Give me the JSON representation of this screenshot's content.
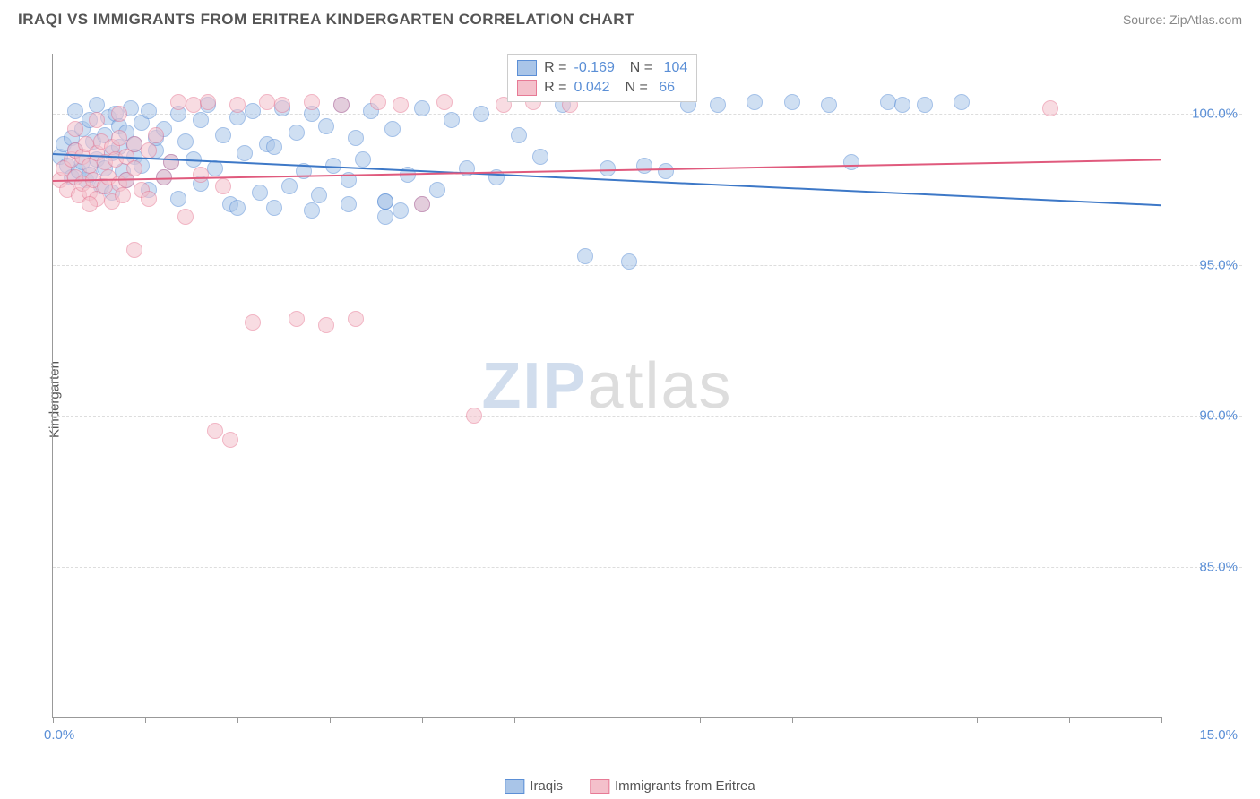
{
  "title": "IRAQI VS IMMIGRANTS FROM ERITREA KINDERGARTEN CORRELATION CHART",
  "source": "Source: ZipAtlas.com",
  "watermark": {
    "zip": "ZIP",
    "atlas": "atlas"
  },
  "chart": {
    "type": "scatter",
    "y_axis_title": "Kindergarten",
    "xlim": [
      0,
      15
    ],
    "ylim": [
      80,
      102
    ],
    "x_label_min": "0.0%",
    "x_label_max": "15.0%",
    "y_ticks": [
      {
        "v": 85,
        "label": "85.0%"
      },
      {
        "v": 90,
        "label": "90.0%"
      },
      {
        "v": 95,
        "label": "95.0%"
      },
      {
        "v": 100,
        "label": "100.0%"
      }
    ],
    "x_tick_positions": [
      0,
      1.25,
      2.5,
      3.75,
      5,
      6.25,
      7.5,
      8.75,
      10,
      11.25,
      12.5,
      13.75,
      15
    ],
    "grid_color": "#dddddd",
    "axis_color": "#999999",
    "background_color": "#ffffff",
    "marker_radius": 9,
    "marker_opacity": 0.55,
    "series": [
      {
        "name": "Iraqis",
        "color_fill": "#a9c5e8",
        "color_stroke": "#5b8fd6",
        "R": "-0.169",
        "N": "104",
        "trend": {
          "x1": 0,
          "y1": 98.7,
          "x2": 15,
          "y2": 97.0,
          "color": "#3d78c7",
          "width": 2
        },
        "points": [
          [
            0.1,
            98.6
          ],
          [
            0.15,
            99.0
          ],
          [
            0.2,
            98.3
          ],
          [
            0.25,
            99.2
          ],
          [
            0.25,
            97.9
          ],
          [
            0.3,
            98.8
          ],
          [
            0.3,
            100.1
          ],
          [
            0.35,
            98.1
          ],
          [
            0.4,
            99.5
          ],
          [
            0.4,
            98.4
          ],
          [
            0.45,
            97.8
          ],
          [
            0.5,
            99.8
          ],
          [
            0.5,
            98.0
          ],
          [
            0.55,
            99.1
          ],
          [
            0.6,
            98.5
          ],
          [
            0.6,
            100.3
          ],
          [
            0.65,
            97.6
          ],
          [
            0.7,
            99.3
          ],
          [
            0.7,
            98.2
          ],
          [
            0.75,
            99.9
          ],
          [
            0.8,
            98.7
          ],
          [
            0.8,
            97.4
          ],
          [
            0.85,
            100.0
          ],
          [
            0.9,
            98.9
          ],
          [
            0.9,
            99.6
          ],
          [
            0.95,
            98.1
          ],
          [
            1.0,
            99.4
          ],
          [
            1.0,
            97.8
          ],
          [
            1.05,
            100.2
          ],
          [
            1.1,
            98.6
          ],
          [
            1.1,
            99.0
          ],
          [
            1.2,
            98.3
          ],
          [
            1.2,
            99.7
          ],
          [
            1.3,
            97.5
          ],
          [
            1.3,
            100.1
          ],
          [
            1.4,
            98.8
          ],
          [
            1.4,
            99.2
          ],
          [
            1.5,
            97.9
          ],
          [
            1.5,
            99.5
          ],
          [
            1.6,
            98.4
          ],
          [
            1.7,
            100.0
          ],
          [
            1.7,
            97.2
          ],
          [
            1.8,
            99.1
          ],
          [
            1.9,
            98.5
          ],
          [
            2.0,
            99.8
          ],
          [
            2.0,
            97.7
          ],
          [
            2.1,
            100.3
          ],
          [
            2.2,
            98.2
          ],
          [
            2.3,
            99.3
          ],
          [
            2.4,
            97.0
          ],
          [
            2.5,
            99.9
          ],
          [
            2.6,
            98.7
          ],
          [
            2.7,
            100.1
          ],
          [
            2.8,
            97.4
          ],
          [
            2.9,
            99.0
          ],
          [
            3.0,
            98.9
          ],
          [
            3.1,
            100.2
          ],
          [
            3.2,
            97.6
          ],
          [
            3.3,
            99.4
          ],
          [
            3.4,
            98.1
          ],
          [
            3.5,
            100.0
          ],
          [
            3.6,
            97.3
          ],
          [
            3.7,
            99.6
          ],
          [
            3.8,
            98.3
          ],
          [
            3.9,
            100.3
          ],
          [
            4.0,
            97.8
          ],
          [
            4.1,
            99.2
          ],
          [
            4.2,
            98.5
          ],
          [
            4.3,
            100.1
          ],
          [
            4.5,
            97.1
          ],
          [
            4.6,
            99.5
          ],
          [
            4.8,
            98.0
          ],
          [
            5.0,
            100.2
          ],
          [
            5.2,
            97.5
          ],
          [
            5.4,
            99.8
          ],
          [
            5.6,
            98.2
          ],
          [
            5.8,
            100.0
          ],
          [
            6.0,
            97.9
          ],
          [
            6.3,
            99.3
          ],
          [
            6.6,
            98.6
          ],
          [
            6.9,
            100.3
          ],
          [
            7.2,
            95.3
          ],
          [
            7.5,
            98.2
          ],
          [
            7.8,
            95.1
          ],
          [
            8.0,
            98.3
          ],
          [
            8.3,
            98.1
          ],
          [
            8.6,
            100.3
          ],
          [
            9.0,
            100.3
          ],
          [
            9.5,
            100.4
          ],
          [
            10.0,
            100.4
          ],
          [
            10.5,
            100.3
          ],
          [
            10.8,
            98.4
          ],
          [
            11.3,
            100.4
          ],
          [
            11.8,
            100.3
          ],
          [
            12.3,
            100.4
          ],
          [
            2.5,
            96.9
          ],
          [
            3.0,
            96.9
          ],
          [
            3.5,
            96.8
          ],
          [
            4.0,
            97.0
          ],
          [
            4.5,
            97.1
          ],
          [
            4.5,
            96.6
          ],
          [
            4.7,
            96.8
          ],
          [
            5.0,
            97.0
          ],
          [
            11.5,
            100.3
          ]
        ]
      },
      {
        "name": "Immigrants from Eritrea",
        "color_fill": "#f4c0cb",
        "color_stroke": "#e77a95",
        "R": "0.042",
        "N": "66",
        "trend": {
          "x1": 0,
          "y1": 97.8,
          "x2": 15,
          "y2": 98.5,
          "color": "#e05a7d",
          "width": 2
        },
        "points": [
          [
            0.1,
            97.8
          ],
          [
            0.15,
            98.2
          ],
          [
            0.2,
            97.5
          ],
          [
            0.25,
            98.5
          ],
          [
            0.3,
            97.9
          ],
          [
            0.3,
            98.8
          ],
          [
            0.35,
            97.3
          ],
          [
            0.4,
            98.6
          ],
          [
            0.4,
            97.7
          ],
          [
            0.45,
            99.0
          ],
          [
            0.5,
            97.4
          ],
          [
            0.5,
            98.3
          ],
          [
            0.55,
            97.8
          ],
          [
            0.6,
            98.7
          ],
          [
            0.6,
            97.2
          ],
          [
            0.65,
            99.1
          ],
          [
            0.7,
            97.6
          ],
          [
            0.7,
            98.4
          ],
          [
            0.75,
            97.9
          ],
          [
            0.8,
            98.9
          ],
          [
            0.8,
            97.1
          ],
          [
            0.85,
            98.5
          ],
          [
            0.9,
            97.7
          ],
          [
            0.9,
            99.2
          ],
          [
            0.95,
            97.3
          ],
          [
            1.0,
            98.6
          ],
          [
            1.0,
            97.8
          ],
          [
            1.1,
            98.2
          ],
          [
            1.1,
            99.0
          ],
          [
            1.2,
            97.5
          ],
          [
            1.3,
            98.8
          ],
          [
            1.3,
            97.2
          ],
          [
            1.4,
            99.3
          ],
          [
            1.5,
            97.9
          ],
          [
            1.6,
            98.4
          ],
          [
            1.7,
            100.4
          ],
          [
            1.8,
            96.6
          ],
          [
            1.9,
            100.3
          ],
          [
            2.0,
            98.0
          ],
          [
            2.1,
            100.4
          ],
          [
            2.3,
            97.6
          ],
          [
            2.5,
            100.3
          ],
          [
            2.7,
            93.1
          ],
          [
            2.9,
            100.4
          ],
          [
            3.1,
            100.3
          ],
          [
            3.3,
            93.2
          ],
          [
            3.5,
            100.4
          ],
          [
            3.7,
            93.0
          ],
          [
            3.9,
            100.3
          ],
          [
            4.1,
            93.2
          ],
          [
            4.4,
            100.4
          ],
          [
            4.7,
            100.3
          ],
          [
            5.0,
            97.0
          ],
          [
            5.3,
            100.4
          ],
          [
            5.7,
            90.0
          ],
          [
            6.1,
            100.3
          ],
          [
            6.5,
            100.4
          ],
          [
            7.0,
            100.3
          ],
          [
            2.2,
            89.5
          ],
          [
            2.4,
            89.2
          ],
          [
            0.5,
            97.0
          ],
          [
            1.1,
            95.5
          ],
          [
            13.5,
            100.2
          ],
          [
            0.3,
            99.5
          ],
          [
            0.6,
            99.8
          ],
          [
            0.9,
            100.0
          ]
        ]
      }
    ],
    "legend_box": {
      "left_pct": 41,
      "top_pct": 0
    },
    "bottom_legend": [
      {
        "label": "Iraqis",
        "fill": "#a9c5e8",
        "stroke": "#5b8fd6"
      },
      {
        "label": "Immigrants from Eritrea",
        "fill": "#f4c0cb",
        "stroke": "#e77a95"
      }
    ]
  }
}
